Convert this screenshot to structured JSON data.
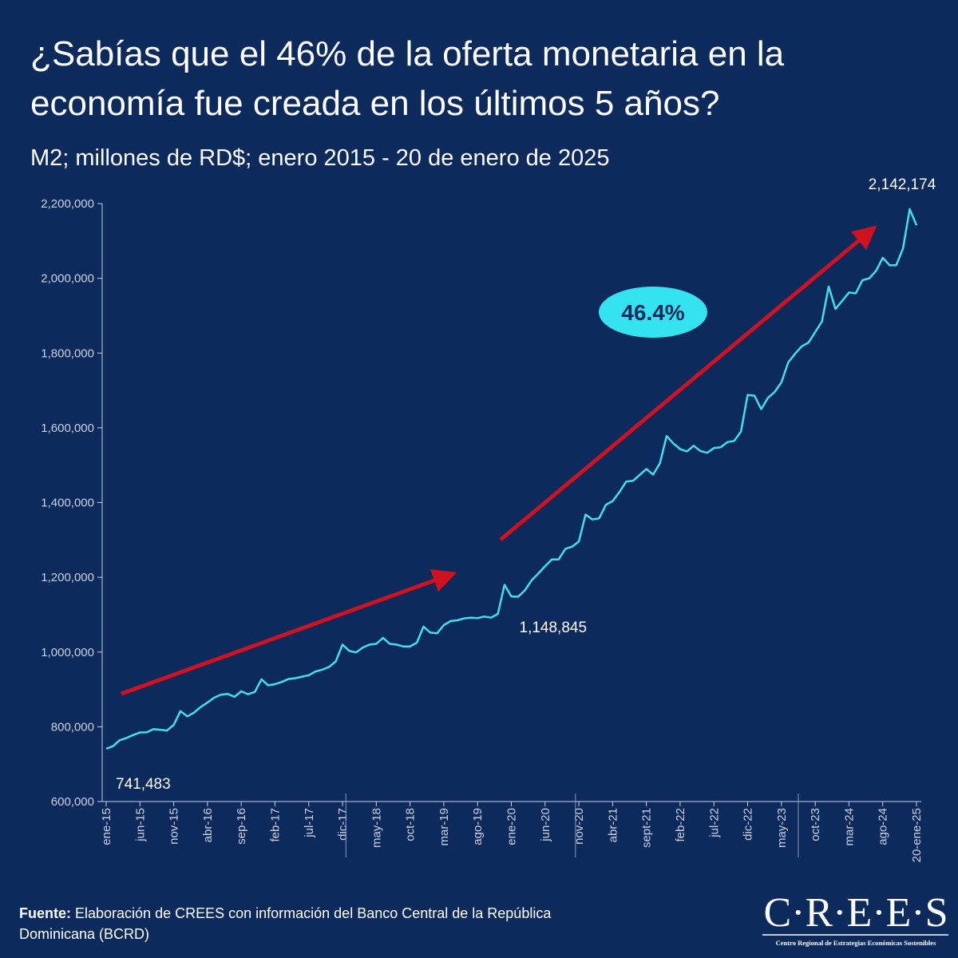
{
  "chart_data": {
    "type": "line",
    "title": "¿Sabías que el 46% de la oferta monetaria en la economía fue creada en los últimos 5 años?",
    "subtitle": "M2; millones de RD$; enero 2015 - 20 de enero de 2025",
    "annotation": "46.4%",
    "source_label": "Fuente:",
    "source": "Elaboración de CREES con información del Banco Central de la República Dominicana (BCRD)",
    "logo": "C·R·E·E·S",
    "logo_subtitle": "Centro Regional de Estrategias Económicas Sostenibles",
    "color": "#3ee0ea",
    "categories": [
      "ene-15",
      null,
      null,
      null,
      null,
      "jun-15",
      null,
      null,
      null,
      null,
      "nov-15",
      null,
      null,
      null,
      null,
      "abr-16",
      null,
      null,
      null,
      null,
      "sep-16",
      null,
      null,
      null,
      null,
      "feb-17",
      null,
      null,
      null,
      null,
      "jul-17",
      null,
      null,
      null,
      null,
      "dic-17",
      null,
      null,
      null,
      null,
      "may-18",
      null,
      null,
      null,
      null,
      "oct-18",
      null,
      null,
      null,
      null,
      "mar-19",
      null,
      null,
      null,
      null,
      "ago-19",
      null,
      null,
      null,
      null,
      "ene-20",
      null,
      null,
      null,
      null,
      "jun-20",
      null,
      null,
      null,
      null,
      "nov-20",
      null,
      null,
      null,
      null,
      "abr-21",
      null,
      null,
      null,
      null,
      "sept-21",
      null,
      null,
      null,
      null,
      "feb-22",
      null,
      null,
      null,
      null,
      "jul-22",
      null,
      null,
      null,
      null,
      "dic-22",
      null,
      null,
      null,
      null,
      "may-23",
      null,
      null,
      null,
      null,
      "oct-23",
      null,
      null,
      null,
      null,
      "mar-24",
      null,
      null,
      null,
      null,
      "ago-24",
      null,
      null,
      null,
      null,
      "20-ene-25"
    ],
    "values": [
      741483,
      748000,
      764000,
      770000,
      778000,
      785000,
      785000,
      794000,
      792000,
      790000,
      805000,
      842000,
      828000,
      838000,
      853000,
      865000,
      878000,
      886000,
      888000,
      880000,
      895000,
      887000,
      893000,
      927000,
      911000,
      914000,
      920000,
      928000,
      930000,
      934000,
      938000,
      948000,
      953000,
      960000,
      975000,
      1020000,
      1003000,
      999000,
      1012000,
      1020000,
      1022000,
      1038000,
      1022000,
      1020000,
      1015000,
      1015000,
      1025000,
      1068000,
      1052000,
      1050000,
      1072000,
      1083000,
      1085000,
      1090000,
      1092000,
      1091000,
      1095000,
      1092000,
      1102000,
      1180000,
      1148845,
      1148000,
      1165000,
      1192000,
      1210000,
      1230000,
      1248000,
      1248000,
      1276000,
      1282000,
      1296000,
      1368000,
      1355000,
      1358000,
      1394000,
      1404000,
      1428000,
      1456000,
      1458000,
      1474000,
      1490000,
      1475000,
      1505000,
      1578000,
      1558000,
      1543000,
      1537000,
      1552000,
      1538000,
      1533000,
      1546000,
      1548000,
      1562000,
      1565000,
      1590000,
      1688000,
      1686000,
      1650000,
      1680000,
      1696000,
      1722000,
      1775000,
      1798000,
      1818000,
      1828000,
      1856000,
      1885000,
      1978000,
      1918000,
      1940000,
      1962000,
      1960000,
      1995000,
      2000000,
      2020000,
      2055000,
      2035000,
      2035000,
      2080000,
      2185000,
      2142174
    ],
    "value_labels": [
      "741,483",
      null,
      null,
      null,
      null,
      null,
      null,
      null,
      null,
      null,
      null,
      null,
      null,
      null,
      null,
      null,
      null,
      null,
      null,
      null,
      null,
      null,
      null,
      null,
      null,
      null,
      null,
      null,
      null,
      null,
      null,
      null,
      null,
      null,
      null,
      null,
      null,
      null,
      null,
      null,
      null,
      null,
      null,
      null,
      null,
      null,
      null,
      null,
      null,
      null,
      null,
      null,
      null,
      null,
      null,
      null,
      null,
      null,
      null,
      null,
      "1,148,845",
      null,
      null,
      null,
      null,
      null,
      null,
      null,
      null,
      null,
      null,
      null,
      null,
      null,
      null,
      null,
      null,
      null,
      null,
      null,
      null,
      null,
      null,
      null,
      null,
      null,
      null,
      null,
      null,
      null,
      null,
      null,
      null,
      null,
      null,
      null,
      null,
      null,
      null,
      null,
      null,
      null,
      null,
      null,
      null,
      null,
      null,
      null,
      null,
      null,
      null,
      null,
      null,
      null,
      null,
      null,
      null,
      null,
      null,
      null,
      "2,142,174"
    ],
    "ylim": [
      600000,
      2200000
    ],
    "yticks": [
      {
        "value": 600000,
        "label": "600,000"
      },
      {
        "value": 800000,
        "label": "800,000"
      },
      {
        "value": 1000000,
        "label": "1,000,000"
      },
      {
        "value": 1200000,
        "label": "1,200,000"
      },
      {
        "value": 1400000,
        "label": "1,400,000"
      },
      {
        "value": 1600000,
        "label": "1,600,000"
      },
      {
        "value": 1800000,
        "label": "1,800,000"
      },
      {
        "value": 2000000,
        "label": "2,000,000"
      },
      {
        "value": 2200000,
        "label": "2,200,000"
      }
    ]
  }
}
